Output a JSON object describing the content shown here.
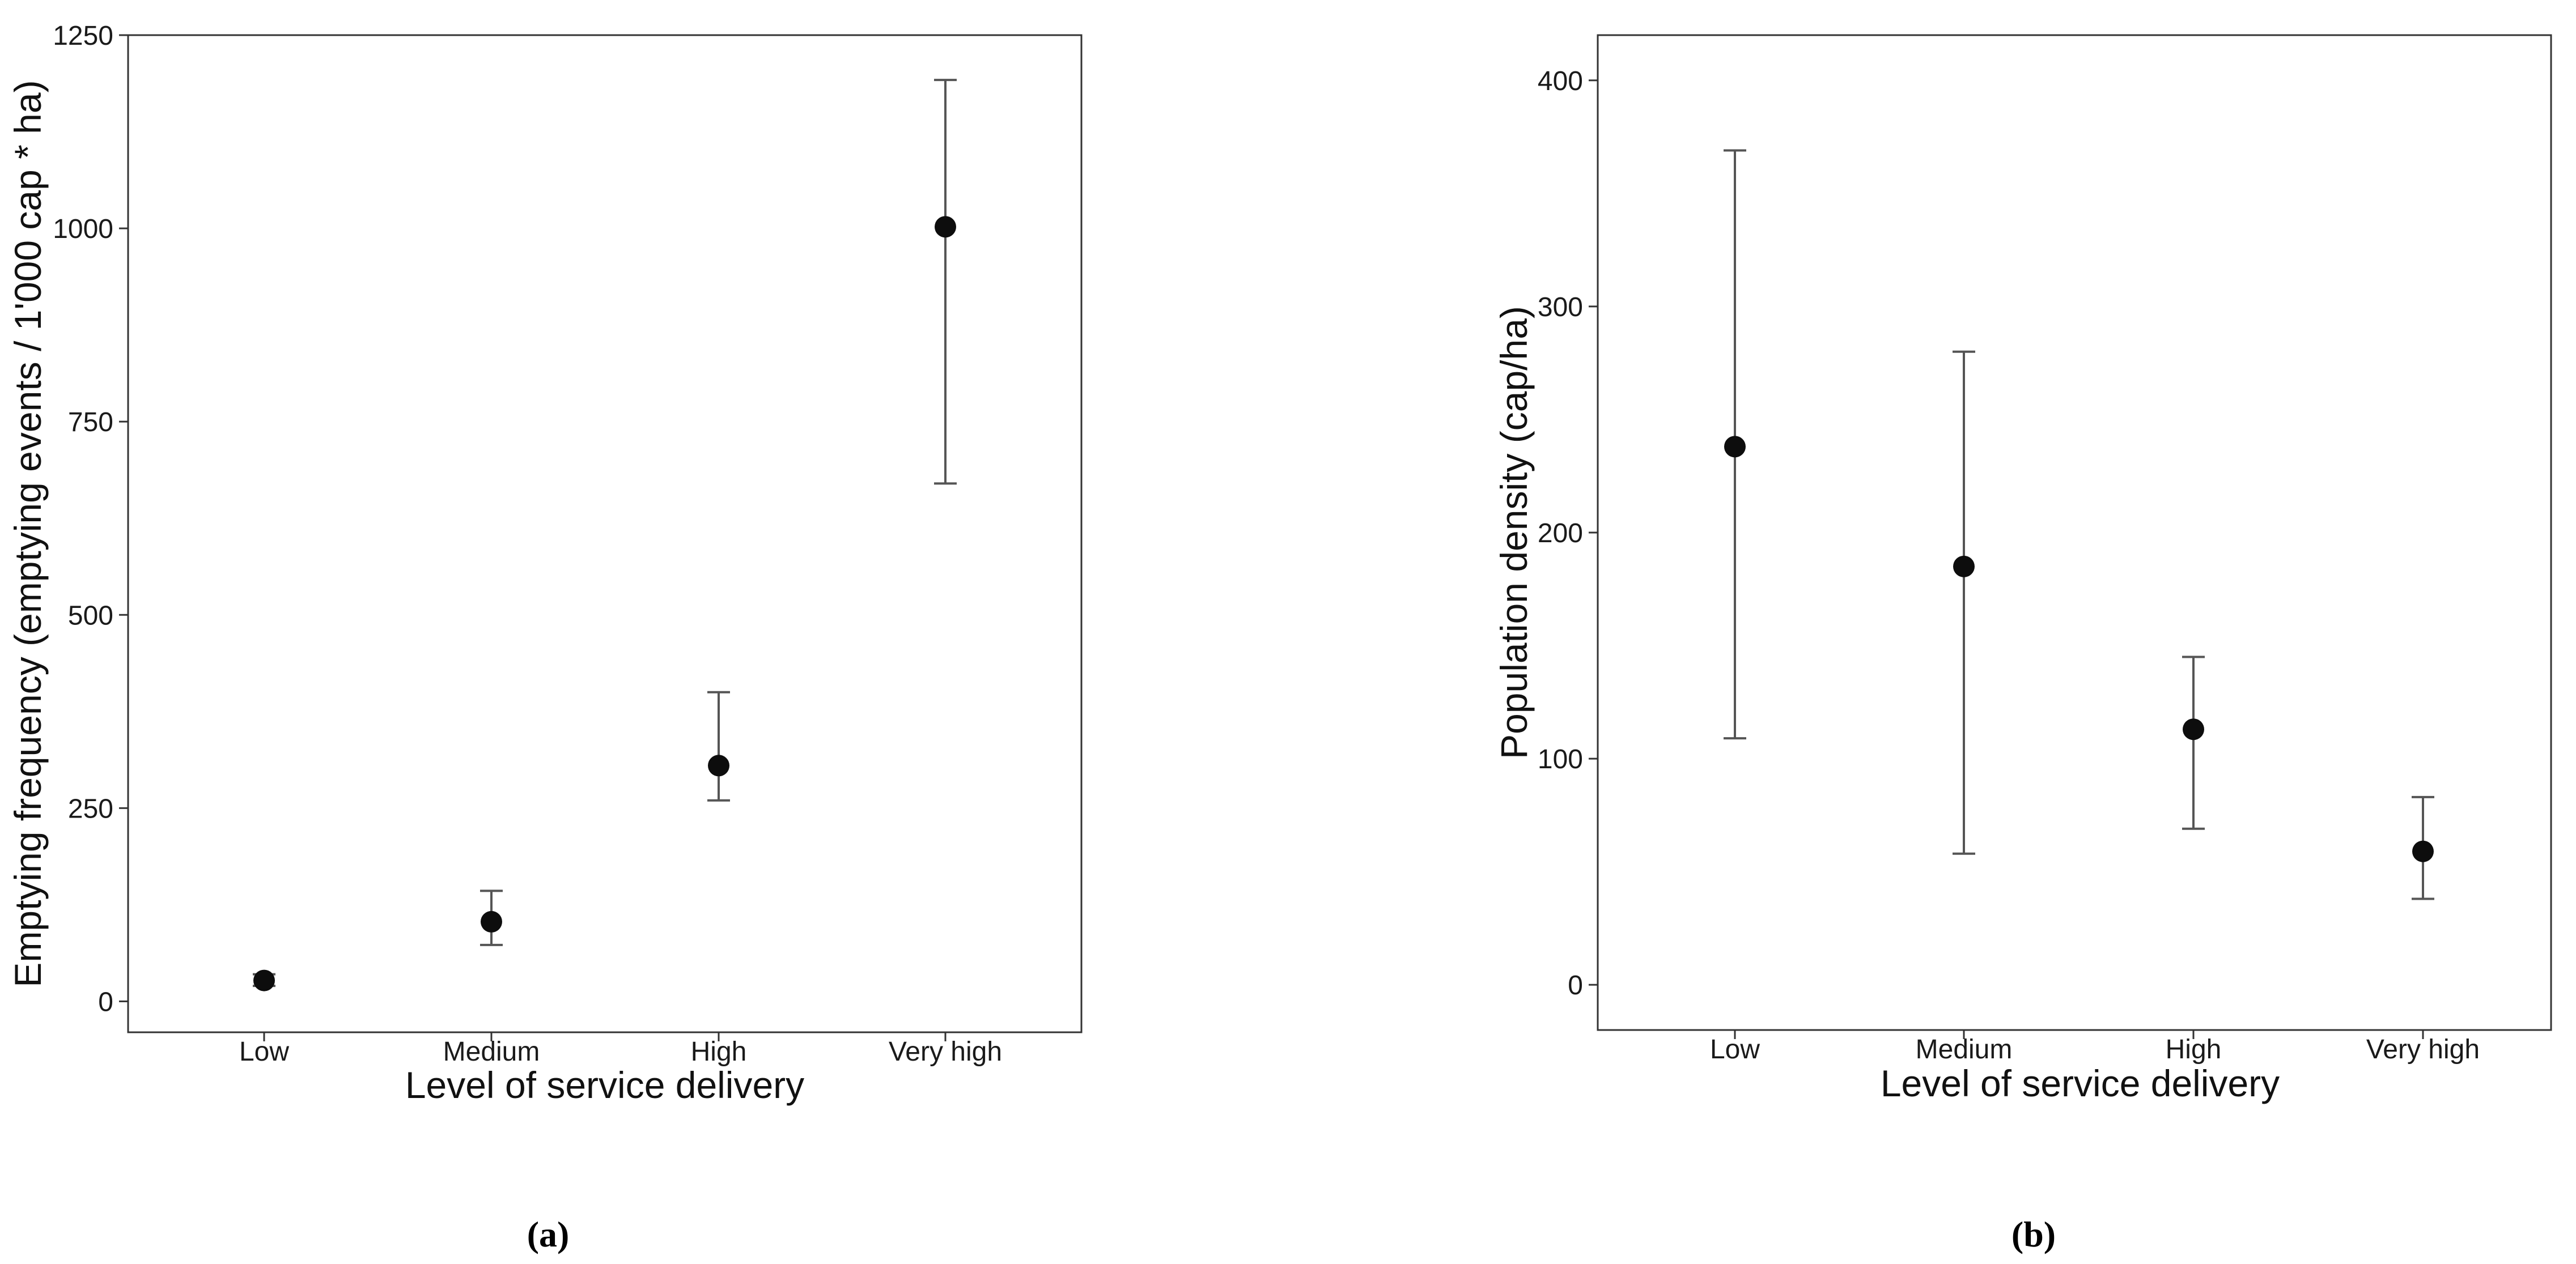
{
  "chart_data": [
    {
      "type": "scatter",
      "panel_label": "(a)",
      "title": "",
      "xlabel": "Level of service delivery",
      "ylabel": "Emptying frequency (emptying events / 1'000 cap * ha)",
      "categories": [
        "Low",
        "Medium",
        "High",
        "Very high"
      ],
      "ylim": [
        -40,
        1250
      ],
      "yticks": [
        0,
        250,
        500,
        750,
        1000,
        1250
      ],
      "grid": false,
      "legend": "none",
      "series": [
        {
          "values": [
            27,
            103,
            305,
            1002
          ],
          "error_low": [
            20,
            73,
            260,
            670
          ],
          "error_high": [
            35,
            143,
            400,
            1192
          ]
        }
      ],
      "point_color": "#0d0d0d",
      "errorbar_color": "#555555"
    },
    {
      "type": "scatter",
      "panel_label": "(b)",
      "title": "",
      "xlabel": "Level of service delivery",
      "ylabel": "Population density (cap/ha)",
      "categories": [
        "Low",
        "Medium",
        "High",
        "Very high"
      ],
      "ylim": [
        -20,
        420
      ],
      "yticks": [
        0,
        100,
        200,
        300,
        400
      ],
      "grid": false,
      "legend": "none",
      "series": [
        {
          "values": [
            238,
            185,
            113,
            59
          ],
          "error_low": [
            109,
            58,
            69,
            38
          ],
          "error_high": [
            369,
            280,
            145,
            83
          ]
        }
      ],
      "point_color": "#0d0d0d",
      "errorbar_color": "#555555"
    }
  ]
}
